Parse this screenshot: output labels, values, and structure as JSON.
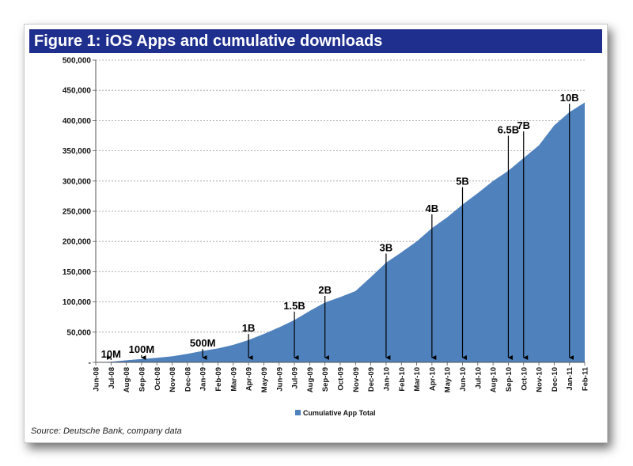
{
  "figure": {
    "title": "Figure 1:  iOS Apps and cumulative downloads",
    "source": "Source: Deutsche Bank, company data"
  },
  "chart_data": {
    "type": "area",
    "title": "Figure 1:  iOS Apps and cumulative downloads",
    "xlabel": "",
    "ylabel": "",
    "ylim": [
      0,
      500000
    ],
    "y_ticks": [
      "-",
      "50,000",
      "100,000",
      "150,000",
      "200,000",
      "250,000",
      "300,000",
      "350,000",
      "400,000",
      "450,000",
      "500,000"
    ],
    "grid": "horizontal dashed",
    "legend_position": "bottom-center",
    "colors": {
      "area": "#4f81bd",
      "title_bar": "#1f2f8e"
    },
    "categories": [
      "Jun-08",
      "Jul-08",
      "Aug-08",
      "Sep-08",
      "Oct-08",
      "Nov-08",
      "Dec-08",
      "Jan-09",
      "Feb-09",
      "Mar-09",
      "Apr-09",
      "May-09",
      "Jun-09",
      "Jul-09",
      "Aug-09",
      "Sep-09",
      "Oct-09",
      "Nov-09",
      "Dec-09",
      "Jan-10",
      "Feb-10",
      "Mar-10",
      "Apr-10",
      "May-10",
      "Jun-10",
      "Jul-10",
      "Aug-10",
      "Sep-10",
      "Oct-10",
      "Nov-10",
      "Dec-10",
      "Jan-11",
      "Feb-11"
    ],
    "series": [
      {
        "name": "Cumulative App Total",
        "values": [
          0,
          1000,
          3500,
          5500,
          7500,
          10000,
          14000,
          19000,
          23000,
          29000,
          37000,
          47000,
          58000,
          70000,
          85000,
          99000,
          108000,
          118000,
          141000,
          165000,
          182000,
          200000,
          222000,
          240000,
          261000,
          280000,
          300000,
          317000,
          338000,
          359000,
          392000,
          414000,
          430000
        ]
      }
    ],
    "annotations": [
      {
        "label": "10M",
        "category": "Jul-08",
        "top": 4000
      },
      {
        "label": "100M",
        "category": "Sep-08",
        "top": 12000
      },
      {
        "label": "500M",
        "category": "Jan-09",
        "top": 22000
      },
      {
        "label": "1B",
        "category": "Apr-09",
        "top": 47000
      },
      {
        "label": "1.5B",
        "category": "Jul-09",
        "top": 84000
      },
      {
        "label": "2B",
        "category": "Sep-09",
        "top": 110000
      },
      {
        "label": "3B",
        "category": "Jan-10",
        "top": 180000
      },
      {
        "label": "4B",
        "category": "Apr-10",
        "top": 245000
      },
      {
        "label": "5B",
        "category": "Jun-10",
        "top": 290000
      },
      {
        "label": "6.5B",
        "category": "Sep-10",
        "top": 375000
      },
      {
        "label": "7B",
        "category": "Oct-10",
        "top": 382000
      },
      {
        "label": "10B",
        "category": "Jan-11",
        "top": 428000
      }
    ]
  }
}
